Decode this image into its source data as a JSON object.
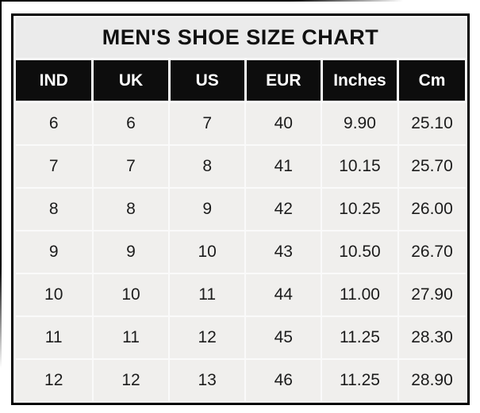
{
  "chart_data": {
    "type": "table",
    "title": "MEN'S SHOE SIZE CHART",
    "columns": [
      "IND",
      "UK",
      "US",
      "EUR",
      "Inches",
      "Cm"
    ],
    "rows": [
      [
        "6",
        "6",
        "7",
        "40",
        "9.90",
        "25.10"
      ],
      [
        "7",
        "7",
        "8",
        "41",
        "10.15",
        "25.70"
      ],
      [
        "8",
        "8",
        "9",
        "42",
        "10.25",
        "26.00"
      ],
      [
        "9",
        "9",
        "10",
        "43",
        "10.50",
        "26.70"
      ],
      [
        "10",
        "10",
        "11",
        "44",
        "11.00",
        "27.90"
      ],
      [
        "11",
        "11",
        "12",
        "45",
        "11.25",
        "28.30"
      ],
      [
        "12",
        "12",
        "13",
        "46",
        "11.25",
        "28.90"
      ]
    ],
    "layout_hints": {
      "title_position": "top row merged across all 6 columns",
      "header_style": "black background with white bold text",
      "grid": "thin light separators between light-gray cells, thick black outer border",
      "column_width_percent": [
        17.3,
        16.9,
        16.9,
        16.9,
        16.9,
        15.1
      ]
    }
  },
  "colors": {
    "page_bg": "#ffffff",
    "title_bg": "#ebebeb",
    "title_text": "#111111",
    "header_bg": "#0d0d0d",
    "header_text": "#ffffff",
    "cell_bg": "#f0efed",
    "grid_line": "#fafafa",
    "table_border": "#000000",
    "body_text": "#1c1c1c"
  }
}
